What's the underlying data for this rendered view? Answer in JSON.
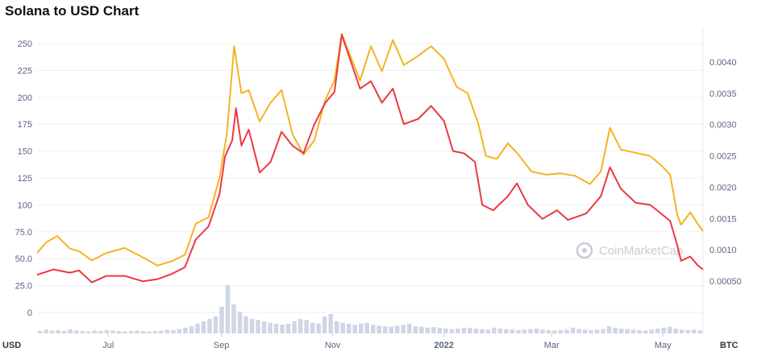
{
  "title": "Solana to USD Chart",
  "chart_data": {
    "type": "line",
    "title": "Solana to USD Chart",
    "left_axis_unit": "USD",
    "right_axis_unit": "BTC",
    "ylim_usd": [
      0,
      262
    ],
    "ylim_btc": [
      0.0,
      0.0045
    ],
    "y_ticks_usd": [
      "0",
      "25.0",
      "50.0",
      "75.0",
      "100",
      "125",
      "150",
      "175",
      "200",
      "225",
      "250"
    ],
    "y_tick_values_usd": [
      0,
      25,
      50,
      75,
      100,
      125,
      150,
      175,
      200,
      225,
      250
    ],
    "y_ticks_btc": [
      "0.00050",
      "0.0010",
      "0.0015",
      "0.0020",
      "0.0025",
      "0.0030",
      "0.0035",
      "0.0040"
    ],
    "y_tick_values_btc": [
      0.0005,
      0.001,
      0.0015,
      0.002,
      0.0025,
      0.003,
      0.0035,
      0.004
    ],
    "x_ticks": [
      "Jul",
      "Sep",
      "Nov",
      "2022",
      "Mar",
      "May"
    ],
    "x_tick_bold": [
      false,
      false,
      false,
      true,
      false,
      false
    ],
    "x_tick_dates": [
      "2021-07-01",
      "2021-09-01",
      "2021-11-01",
      "2022-01-01",
      "2022-03-01",
      "2022-05-01"
    ],
    "x_range": [
      "2021-05-23",
      "2022-05-23"
    ],
    "grid": true,
    "watermark": "CoinMarketCap",
    "colors": {
      "usd": "#ea3943",
      "btc": "#f5b322",
      "grid": "#eef0f4",
      "volume": "#cfd6e4"
    },
    "series": [
      {
        "name": "USD",
        "axis": "left",
        "points": [
          [
            "2021-05-23",
            35
          ],
          [
            "2021-06-01",
            40
          ],
          [
            "2021-06-10",
            37
          ],
          [
            "2021-06-15",
            39
          ],
          [
            "2021-06-22",
            28
          ],
          [
            "2021-06-30",
            34
          ],
          [
            "2021-07-10",
            34
          ],
          [
            "2021-07-20",
            29
          ],
          [
            "2021-07-28",
            31
          ],
          [
            "2021-08-05",
            36
          ],
          [
            "2021-08-12",
            42
          ],
          [
            "2021-08-18",
            68
          ],
          [
            "2021-08-25",
            80
          ],
          [
            "2021-08-31",
            110
          ],
          [
            "2021-09-03",
            145
          ],
          [
            "2021-09-07",
            160
          ],
          [
            "2021-09-09",
            190
          ],
          [
            "2021-09-12",
            155
          ],
          [
            "2021-09-16",
            170
          ],
          [
            "2021-09-22",
            130
          ],
          [
            "2021-09-28",
            140
          ],
          [
            "2021-10-04",
            168
          ],
          [
            "2021-10-10",
            155
          ],
          [
            "2021-10-16",
            148
          ],
          [
            "2021-10-22",
            175
          ],
          [
            "2021-10-28",
            195
          ],
          [
            "2021-11-02",
            205
          ],
          [
            "2021-11-06",
            258
          ],
          [
            "2021-11-10",
            238
          ],
          [
            "2021-11-16",
            208
          ],
          [
            "2021-11-22",
            215
          ],
          [
            "2021-11-28",
            195
          ],
          [
            "2021-12-04",
            208
          ],
          [
            "2021-12-10",
            175
          ],
          [
            "2021-12-18",
            180
          ],
          [
            "2021-12-25",
            192
          ],
          [
            "2022-01-01",
            178
          ],
          [
            "2022-01-06",
            150
          ],
          [
            "2022-01-12",
            148
          ],
          [
            "2022-01-18",
            140
          ],
          [
            "2022-01-22",
            100
          ],
          [
            "2022-01-28",
            95
          ],
          [
            "2022-02-05",
            108
          ],
          [
            "2022-02-10",
            120
          ],
          [
            "2022-02-16",
            100
          ],
          [
            "2022-02-24",
            87
          ],
          [
            "2022-03-04",
            95
          ],
          [
            "2022-03-10",
            86
          ],
          [
            "2022-03-20",
            92
          ],
          [
            "2022-03-28",
            108
          ],
          [
            "2022-04-02",
            135
          ],
          [
            "2022-04-08",
            115
          ],
          [
            "2022-04-16",
            102
          ],
          [
            "2022-04-24",
            100
          ],
          [
            "2022-04-30",
            92
          ],
          [
            "2022-05-05",
            85
          ],
          [
            "2022-05-09",
            62
          ],
          [
            "2022-05-11",
            48
          ],
          [
            "2022-05-16",
            52
          ],
          [
            "2022-05-20",
            44
          ],
          [
            "2022-05-23",
            40
          ]
        ]
      },
      {
        "name": "BTC",
        "axis": "right",
        "points": [
          [
            "2021-05-23",
            0.00095
          ],
          [
            "2021-05-28",
            0.00112
          ],
          [
            "2021-06-03",
            0.00122
          ],
          [
            "2021-06-10",
            0.00102
          ],
          [
            "2021-06-15",
            0.00098
          ],
          [
            "2021-06-22",
            0.00083
          ],
          [
            "2021-06-30",
            0.00095
          ],
          [
            "2021-07-10",
            0.00103
          ],
          [
            "2021-07-20",
            0.00088
          ],
          [
            "2021-07-28",
            0.00075
          ],
          [
            "2021-08-05",
            0.00082
          ],
          [
            "2021-08-12",
            0.00092
          ],
          [
            "2021-08-18",
            0.00142
          ],
          [
            "2021-08-25",
            0.00152
          ],
          [
            "2021-08-31",
            0.00215
          ],
          [
            "2021-09-04",
            0.00285
          ],
          [
            "2021-09-08",
            0.00425
          ],
          [
            "2021-09-12",
            0.0035
          ],
          [
            "2021-09-16",
            0.00355
          ],
          [
            "2021-09-22",
            0.00305
          ],
          [
            "2021-09-28",
            0.00335
          ],
          [
            "2021-10-04",
            0.00355
          ],
          [
            "2021-10-10",
            0.00285
          ],
          [
            "2021-10-16",
            0.00252
          ],
          [
            "2021-10-22",
            0.00275
          ],
          [
            "2021-10-28",
            0.0034
          ],
          [
            "2021-11-02",
            0.0037
          ],
          [
            "2021-11-06",
            0.00445
          ],
          [
            "2021-11-10",
            0.00415
          ],
          [
            "2021-11-16",
            0.0037
          ],
          [
            "2021-11-22",
            0.00425
          ],
          [
            "2021-11-28",
            0.00385
          ],
          [
            "2021-12-04",
            0.00435
          ],
          [
            "2021-12-10",
            0.00395
          ],
          [
            "2021-12-18",
            0.0041
          ],
          [
            "2021-12-25",
            0.00425
          ],
          [
            "2022-01-01",
            0.00405
          ],
          [
            "2022-01-08",
            0.0036
          ],
          [
            "2022-01-14",
            0.0035
          ],
          [
            "2022-01-20",
            0.003
          ],
          [
            "2022-01-24",
            0.0025
          ],
          [
            "2022-01-30",
            0.00245
          ],
          [
            "2022-02-05",
            0.0027
          ],
          [
            "2022-02-10",
            0.00255
          ],
          [
            "2022-02-18",
            0.00225
          ],
          [
            "2022-02-26",
            0.0022
          ],
          [
            "2022-03-06",
            0.00222
          ],
          [
            "2022-03-14",
            0.00218
          ],
          [
            "2022-03-22",
            0.00205
          ],
          [
            "2022-03-28",
            0.00225
          ],
          [
            "2022-04-02",
            0.00295
          ],
          [
            "2022-04-08",
            0.0026
          ],
          [
            "2022-04-16",
            0.00255
          ],
          [
            "2022-04-24",
            0.0025
          ],
          [
            "2022-04-30",
            0.00235
          ],
          [
            "2022-05-05",
            0.0022
          ],
          [
            "2022-05-09",
            0.00155
          ],
          [
            "2022-05-11",
            0.0014
          ],
          [
            "2022-05-16",
            0.0016
          ],
          [
            "2022-05-20",
            0.00142
          ],
          [
            "2022-05-23",
            0.0013
          ]
        ]
      }
    ],
    "volume_relative": [
      0.05,
      0.08,
      0.06,
      0.07,
      0.05,
      0.09,
      0.06,
      0.05,
      0.04,
      0.06,
      0.05,
      0.07,
      0.06,
      0.05,
      0.04,
      0.05,
      0.06,
      0.05,
      0.04,
      0.05,
      0.06,
      0.08,
      0.07,
      0.09,
      0.12,
      0.15,
      0.2,
      0.25,
      0.3,
      0.35,
      0.55,
      1.0,
      0.6,
      0.45,
      0.35,
      0.3,
      0.28,
      0.25,
      0.22,
      0.2,
      0.18,
      0.2,
      0.25,
      0.3,
      0.28,
      0.22,
      0.2,
      0.35,
      0.4,
      0.25,
      0.22,
      0.2,
      0.18,
      0.2,
      0.22,
      0.18,
      0.16,
      0.15,
      0.14,
      0.16,
      0.18,
      0.2,
      0.15,
      0.14,
      0.12,
      0.13,
      0.12,
      0.1,
      0.09,
      0.1,
      0.12,
      0.11,
      0.1,
      0.09,
      0.08,
      0.12,
      0.1,
      0.09,
      0.08,
      0.07,
      0.08,
      0.09,
      0.1,
      0.08,
      0.07,
      0.06,
      0.07,
      0.08,
      0.12,
      0.09,
      0.08,
      0.07,
      0.08,
      0.09,
      0.15,
      0.12,
      0.1,
      0.09,
      0.08,
      0.07,
      0.06,
      0.08,
      0.1,
      0.12,
      0.14,
      0.1,
      0.08,
      0.07,
      0.08,
      0.06
    ]
  }
}
